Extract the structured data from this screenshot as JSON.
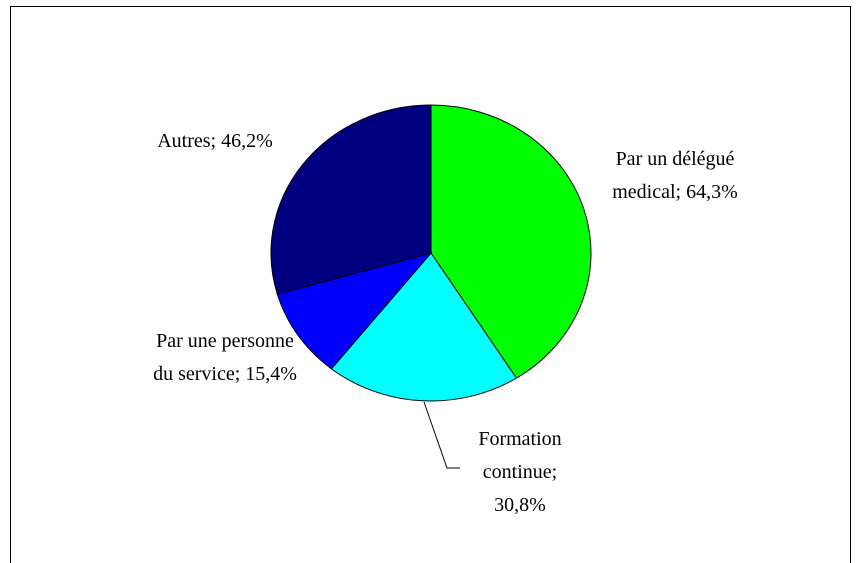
{
  "chart_data": {
    "type": "pie",
    "values": [
      64.3,
      30.8,
      15.4,
      46.2
    ],
    "value_labels": [
      "Par un délégué medical; 64,3%",
      "Formation continue; 30,8%",
      "Par une personne du service; 15,4%",
      "Autres; 46,2%"
    ],
    "colors": [
      "#00ff00",
      "#00ffff",
      "#0000ff",
      "#000080"
    ]
  }
}
